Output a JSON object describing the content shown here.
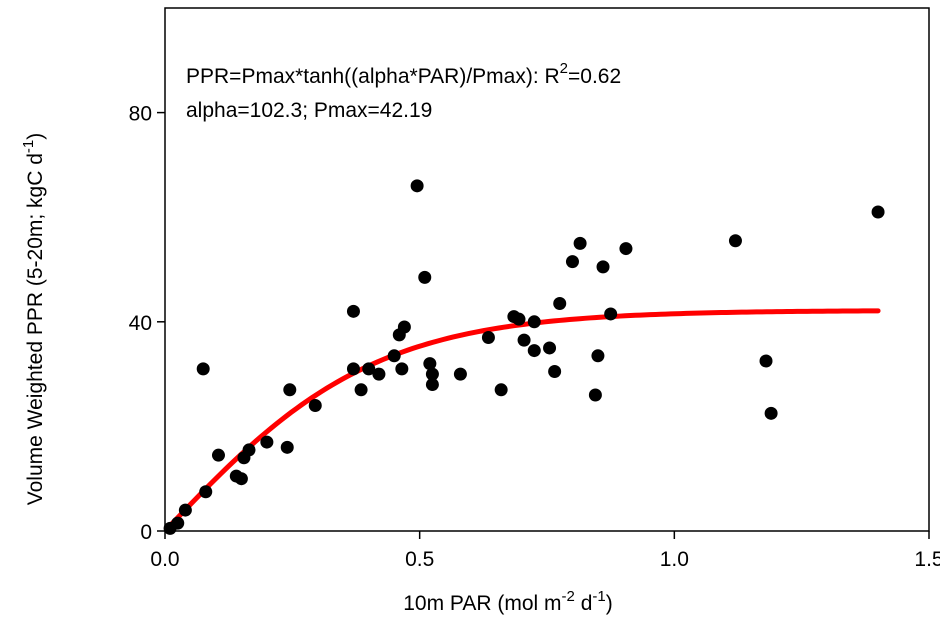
{
  "chart_data": {
    "type": "scatter",
    "title": "",
    "xlabel_parts": [
      "10m PAR (mol m",
      "-2",
      " d",
      "-1",
      ")"
    ],
    "ylabel_parts": [
      "Volume Weighted PPR (5-20m; kgC d",
      "-1",
      ")"
    ],
    "xlim": [
      0,
      1.5
    ],
    "ylim": [
      0,
      100
    ],
    "xticks": [
      0,
      0.5,
      1.0,
      1.5
    ],
    "xtick_labels": [
      "0.0",
      "0.5",
      "1.0",
      "1.5"
    ],
    "yticks": [
      0,
      40,
      80
    ],
    "ytick_labels": [
      "0",
      "40",
      "80"
    ],
    "grid": false,
    "annotation_line1_parts": [
      "PPR=Pmax*tanh((alpha*PAR)/Pmax): R",
      "2",
      "=0.62"
    ],
    "annotation_line2": "alpha=102.3; Pmax=42.19",
    "series": [
      {
        "type": "scatter",
        "color": "#000000",
        "points": [
          [
            0.01,
            0.5
          ],
          [
            0.025,
            1.5
          ],
          [
            0.04,
            4
          ],
          [
            0.075,
            31
          ],
          [
            0.08,
            7.5
          ],
          [
            0.105,
            14.5
          ],
          [
            0.14,
            10.5
          ],
          [
            0.15,
            10
          ],
          [
            0.155,
            14
          ],
          [
            0.165,
            15.5
          ],
          [
            0.2,
            17
          ],
          [
            0.24,
            16
          ],
          [
            0.245,
            27
          ],
          [
            0.295,
            24
          ],
          [
            0.37,
            42
          ],
          [
            0.37,
            31
          ],
          [
            0.385,
            27
          ],
          [
            0.4,
            31
          ],
          [
            0.42,
            30
          ],
          [
            0.45,
            33.5
          ],
          [
            0.46,
            37.5
          ],
          [
            0.465,
            31
          ],
          [
            0.47,
            39
          ],
          [
            0.495,
            66
          ],
          [
            0.51,
            48.5
          ],
          [
            0.52,
            32
          ],
          [
            0.525,
            30
          ],
          [
            0.525,
            28
          ],
          [
            0.58,
            30
          ],
          [
            0.635,
            37
          ],
          [
            0.66,
            27
          ],
          [
            0.685,
            41
          ],
          [
            0.695,
            40.5
          ],
          [
            0.705,
            36.5
          ],
          [
            0.725,
            34.5
          ],
          [
            0.725,
            40
          ],
          [
            0.755,
            35
          ],
          [
            0.765,
            30.5
          ],
          [
            0.775,
            43.5
          ],
          [
            0.8,
            51.5
          ],
          [
            0.815,
            55
          ],
          [
            0.845,
            26
          ],
          [
            0.85,
            33.5
          ],
          [
            0.86,
            50.5
          ],
          [
            0.875,
            41.5
          ],
          [
            0.905,
            54
          ],
          [
            1.12,
            55.5
          ],
          [
            1.18,
            32.5
          ],
          [
            1.19,
            22.5
          ],
          [
            1.4,
            61
          ]
        ]
      },
      {
        "type": "line",
        "color": "#ff0000",
        "x_range": [
          0.01,
          1.4
        ],
        "model": "Pmax*tanh((alpha*PAR)/Pmax)",
        "alpha": 102.3,
        "Pmax": 42.19
      }
    ]
  }
}
